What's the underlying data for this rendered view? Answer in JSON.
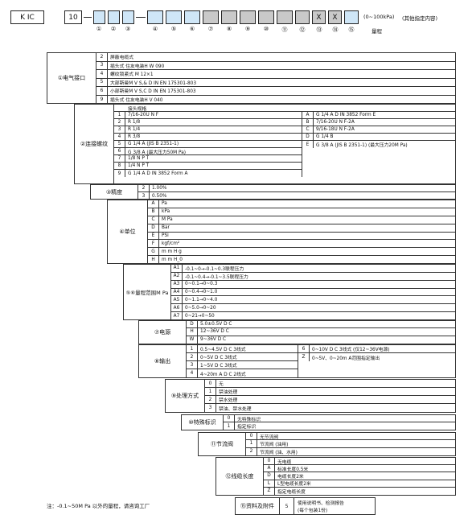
{
  "code_bar": {
    "model": "K IC",
    "series": "10",
    "range_note": "(0~100kPa)",
    "other_note": "(其他指定内容)",
    "range_label": "量程",
    "fixed": [
      "X",
      "X"
    ],
    "numbers": [
      "①",
      "②",
      "③",
      "④",
      "⑤",
      "⑥",
      "⑦",
      "⑧",
      "⑨",
      "⑩",
      "⑪",
      "⑫",
      "⑬",
      "⑭",
      "⑮"
    ]
  },
  "sections": {
    "electrical": {
      "title": "①电气接口",
      "rows": [
        {
          "code": "2",
          "desc": "屏蔽电缆式"
        },
        {
          "code": "3",
          "desc": "插头式 住友电装H W 090"
        },
        {
          "code": "4",
          "desc": "螺纹锁紧式 M 12×1"
        },
        {
          "code": "5",
          "desc": "大部斯曼M V S,& D IN EN 175301-803"
        },
        {
          "code": "6",
          "desc": "小部斯曼M V S,C D IN EN 175301-803"
        },
        {
          "code": "9",
          "desc": "插头式 住友电装H V 040"
        }
      ]
    },
    "thread": {
      "title": "②连接螺纹",
      "header": "接头规格",
      "left": [
        {
          "code": "1",
          "desc": "7/16-20U N F"
        },
        {
          "code": "2",
          "desc": "R 1/8"
        },
        {
          "code": "3",
          "desc": "R 1/4"
        },
        {
          "code": "4",
          "desc": "R 3/8"
        },
        {
          "code": "5",
          "desc": "G 1/4 A  (JIS B 2351-1)"
        },
        {
          "code": "6",
          "desc": "G 3/8 A  (最大压力50M Pa)"
        },
        {
          "code": "7",
          "desc": "1/8 N P T"
        },
        {
          "code": "8",
          "desc": "1/4 N P T"
        },
        {
          "code": "9",
          "desc": "G 1/4 A D IN 3852 Form A"
        }
      ],
      "right": [
        {
          "code": "A",
          "desc": "G 1/4 A D IN 3852 Form E"
        },
        {
          "code": "B",
          "desc": "7/16-20U N F-2A"
        },
        {
          "code": "C",
          "desc": "9/16-18U N F-2A"
        },
        {
          "code": "D",
          "desc": "G 1/4 B"
        },
        {
          "code": "E",
          "desc": "G 3/8 A  (JIS B 2351-1) (最大压力20M Pa)"
        }
      ]
    },
    "accuracy": {
      "title": "③精度",
      "rows": [
        {
          "code": "2",
          "desc": "1.00%"
        },
        {
          "code": "3",
          "desc": "0.50%"
        }
      ]
    },
    "unit": {
      "title": "④单位",
      "rows": [
        {
          "code": "A",
          "desc": "Pa"
        },
        {
          "code": "B",
          "desc": "kPa"
        },
        {
          "code": "C",
          "desc": "M Pa"
        },
        {
          "code": "D",
          "desc": "Bar"
        },
        {
          "code": "E",
          "desc": "PSi"
        },
        {
          "code": "F",
          "desc": "kgf/cm²"
        },
        {
          "code": "G",
          "desc": "m m H g"
        },
        {
          "code": "H",
          "desc": "m m H_0"
        }
      ]
    },
    "range": {
      "title": "⑤⑥量程范围M Pa",
      "rows": [
        {
          "code": "A1",
          "desc": "-0.1~0→-0.1~0.3联程压力"
        },
        {
          "code": "A2",
          "desc": "-0.1~0.4→-0.1~3.5联程压力"
        },
        {
          "code": "A3",
          "desc": "0~0.1→0~0.3"
        },
        {
          "code": "A4",
          "desc": "0~0.4→0~1.0"
        },
        {
          "code": "A5",
          "desc": "0~1.1→0~4.0"
        },
        {
          "code": "A6",
          "desc": "0~5.0→0~20"
        },
        {
          "code": "A7",
          "desc": "0~21→0~50"
        }
      ]
    },
    "power": {
      "title": "⑦电源",
      "rows": [
        {
          "code": "D",
          "desc": "5.0±0.5V D C"
        },
        {
          "code": "H",
          "desc": "12~36V D C"
        },
        {
          "code": "W",
          "desc": "9~36V D C"
        }
      ]
    },
    "output": {
      "title": "⑧输出",
      "left": [
        {
          "code": "1",
          "desc": "0.5~4.5V D C 3线式"
        },
        {
          "code": "2",
          "desc": "0~5V D C 3线式"
        },
        {
          "code": "3",
          "desc": "1~5V D C 3线式"
        },
        {
          "code": "4",
          "desc": "4~20m A D C 2线式"
        }
      ],
      "right": [
        {
          "code": "6",
          "desc": "0~10V D C 3线式 (仅12~36V电源)"
        },
        {
          "code": "Z",
          "desc": "0~5V、0~20m A范围指定输出"
        }
      ]
    },
    "treatment": {
      "title": "⑨处理方式",
      "rows": [
        {
          "code": "0",
          "desc": "无"
        },
        {
          "code": "1",
          "desc": "禁油处理"
        },
        {
          "code": "2",
          "desc": "禁水处理"
        },
        {
          "code": "3",
          "desc": "禁油、禁水处理"
        }
      ]
    },
    "marking": {
      "title": "⑩特殊标识",
      "rows": [
        {
          "code": "0",
          "desc": "无特殊标识"
        },
        {
          "code": "1",
          "desc": "指定标识"
        }
      ]
    },
    "throttle": {
      "title": "⑪节流阀",
      "rows": [
        {
          "code": "0",
          "desc": "无节流阀"
        },
        {
          "code": "1",
          "desc": "节流阀 (油用)"
        },
        {
          "code": "2",
          "desc": "节流阀 (油、水用)"
        }
      ]
    },
    "cable": {
      "title": "⑫线缆长度",
      "rows": [
        {
          "code": "0",
          "desc": "无电缆"
        },
        {
          "code": "A",
          "desc": "标准长度0.5米"
        },
        {
          "code": "D",
          "desc": "电缆长度2米"
        },
        {
          "code": "L",
          "desc": "L型电缆长度2米"
        },
        {
          "code": "Z",
          "desc": "指定电缆长度"
        }
      ]
    },
    "docs": {
      "title": "⑮资料及附件",
      "code": "5",
      "desc1": "使用说明书、检测报告",
      "desc2": "(每个包装1份)"
    }
  },
  "footnote": "注：-0.1~50M Pa 以外的量程，请咨询工厂"
}
